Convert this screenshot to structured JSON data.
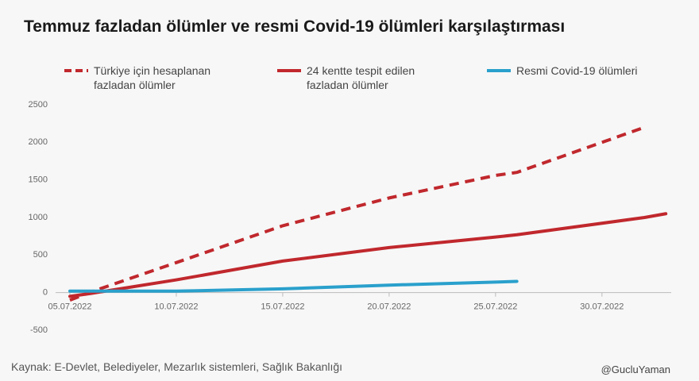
{
  "chart_data": {
    "type": "line",
    "title": "Temmuz fazladan ölümler ve resmi Covid-19 ölümleri karşılaştırması",
    "x": [
      "05.07.2022",
      "06.07.2022",
      "10.07.2022",
      "15.07.2022",
      "20.07.2022",
      "25.07.2022",
      "26.07.2022",
      "01.08.2022",
      "02.08.2022"
    ],
    "series": [
      {
        "name": "Türkiye için hesaplanan fazladan ölümler",
        "color": "#c0282d",
        "dashed": true,
        "values": [
          -100,
          10,
          400,
          890,
          1260,
          1560,
          1600,
          2200,
          null
        ]
      },
      {
        "name": "24 kentte tespit edilen fazladan ölümler",
        "color": "#c0282d",
        "dashed": false,
        "values": [
          -50,
          -10,
          170,
          420,
          600,
          740,
          770,
          1000,
          1050
        ]
      },
      {
        "name": "Resmi Covid-19 ölümleri",
        "color": "#2aa0cc",
        "dashed": false,
        "values": [
          20,
          20,
          20,
          50,
          100,
          140,
          150,
          null,
          null
        ]
      }
    ],
    "xlim": [
      "05.07.2022",
      "03.08.2022"
    ],
    "xticks": [
      "05.07.2022",
      "10.07.2022",
      "15.07.2022",
      "20.07.2022",
      "25.07.2022",
      "30.07.2022"
    ],
    "ylim": [
      -500,
      2500
    ],
    "yticks": [
      -500,
      0,
      500,
      1000,
      1500,
      2000,
      2500
    ],
    "grid": false,
    "source": "Kaynak: E-Devlet, Belediyeler, Mezarlık sistemleri, Sağlık Bakanlığı",
    "credit": "@GucluYaman"
  }
}
